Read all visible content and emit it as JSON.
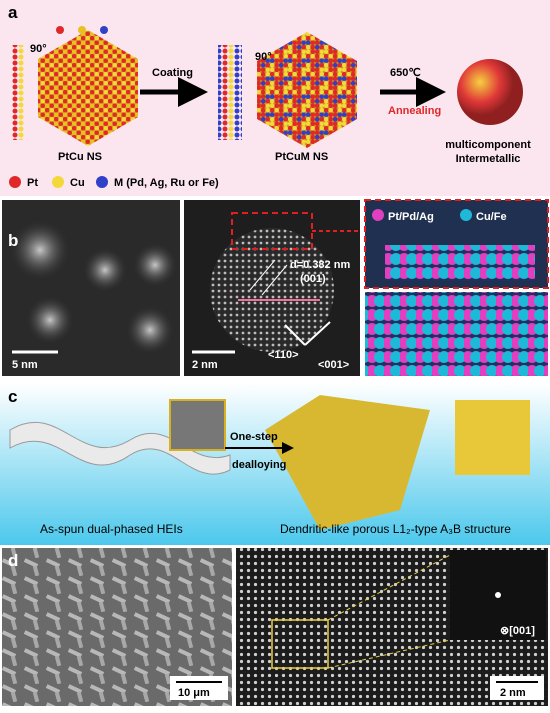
{
  "panel_a": {
    "label": "a",
    "rotation_left": "90°",
    "rotation_right": "90°",
    "step_coating": "Coating",
    "temperature": "650℃",
    "step_annealing": "Annealing",
    "product_left": "PtCu NS",
    "product_middle": "PtCuM NS",
    "product_right": [
      "multicomponent",
      "Intermetallic"
    ],
    "legend": [
      "Pt",
      "Cu",
      "M (Pd, Ag, Ru or Fe)"
    ]
  },
  "panel_b": {
    "label": "b",
    "scale_left": "5 nm",
    "scale_middle": "2 nm",
    "d_spacing": "d=0.382 nm",
    "plane": "(001)",
    "direction_1": "<110>",
    "direction_2": "<001>",
    "legend": [
      "Pt/Pd/Ag",
      "Cu/Fe"
    ]
  },
  "panel_c": {
    "label": "c",
    "process": [
      "One-step",
      "dealloying"
    ],
    "caption_left": "As-spun dual-phased HEIs",
    "caption_right": "Dendritic-like porous L1₂-type A₃B structure"
  },
  "panel_d": {
    "label": "d",
    "scale_left": "10 μm",
    "scale_right": "2 nm",
    "zone_axis": "⊗[001]"
  }
}
